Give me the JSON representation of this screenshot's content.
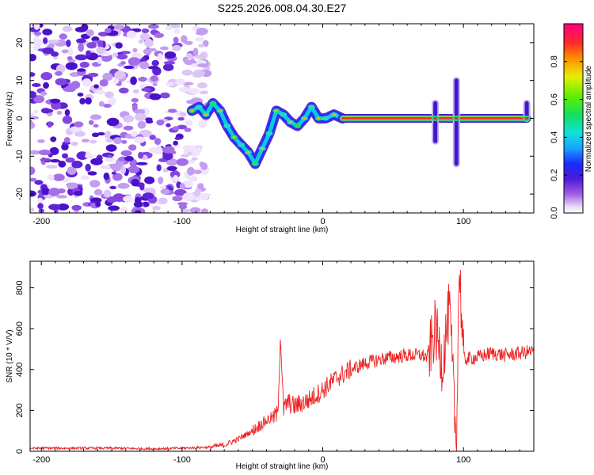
{
  "title": "S225.2026.008.04.30.E27",
  "chart_data": [
    {
      "type": "heatmap",
      "name": "spectrogram",
      "xlabel": "Height of straight line (km)",
      "ylabel": "Frequency (Hz)",
      "xlim": [
        -208,
        150
      ],
      "ylim": [
        -25,
        25
      ],
      "xticks": [
        -200,
        -100,
        0,
        100
      ],
      "yticks": [
        -20,
        -10,
        0,
        10,
        20
      ],
      "colorbar": {
        "label": "Normalized spectral amplitude",
        "range": [
          0,
          1
        ],
        "ticks": [
          0.0,
          0.2,
          0.4,
          0.6,
          0.8
        ]
      },
      "features": {
        "noise_region": [
          -208,
          -90
        ],
        "ridge_points": [
          [
            -93,
            2
          ],
          [
            -88,
            3
          ],
          [
            -83,
            1
          ],
          [
            -78,
            4
          ],
          [
            -73,
            2
          ],
          [
            -68,
            -2
          ],
          [
            -63,
            -5
          ],
          [
            -58,
            -7
          ],
          [
            -53,
            -9
          ],
          [
            -48,
            -12
          ],
          [
            -43,
            -8
          ],
          [
            -38,
            -4
          ],
          [
            -33,
            2
          ],
          [
            -28,
            1
          ],
          [
            -23,
            -1
          ],
          [
            -18,
            -2
          ],
          [
            -13,
            0
          ],
          [
            -8,
            3
          ],
          [
            -3,
            0
          ],
          [
            2,
            0
          ],
          [
            8,
            1
          ],
          [
            14,
            0
          ]
        ],
        "steady_line": {
          "x_start": 14,
          "x_end": 145,
          "frequency": 0
        },
        "spikes": [
          {
            "x": 80,
            "low": -6,
            "high": 4
          },
          {
            "x": 95,
            "low": -12,
            "high": 10
          },
          {
            "x": 145,
            "low": 0,
            "high": 4
          }
        ]
      }
    },
    {
      "type": "line",
      "name": "snr",
      "xlabel": "Height of straight line (km)",
      "ylabel": "SNR (10 * V/V)",
      "xlim": [
        -208,
        150
      ],
      "ylim": [
        0,
        930
      ],
      "xticks": [
        -200,
        -100,
        0,
        100
      ],
      "yticks": [
        0,
        200,
        400,
        600,
        800
      ],
      "color": "#ee2222",
      "series": [
        {
          "name": "SNR",
          "x": [
            -208,
            -180,
            -150,
            -120,
            -100,
            -80,
            -70,
            -60,
            -50,
            -40,
            -32,
            -30,
            -28,
            -25,
            -20,
            -10,
            0,
            10,
            20,
            30,
            40,
            50,
            60,
            70,
            75,
            80,
            85,
            90,
            95,
            97,
            100,
            110,
            120,
            130,
            140,
            150
          ],
          "y": [
            15,
            15,
            15,
            12,
            15,
            20,
            30,
            60,
            100,
            150,
            180,
            580,
            200,
            240,
            220,
            250,
            300,
            360,
            400,
            430,
            450,
            460,
            470,
            470,
            460,
            600,
            430,
            700,
            10,
            930,
            450,
            460,
            480,
            470,
            480,
            490
          ]
        }
      ]
    }
  ]
}
